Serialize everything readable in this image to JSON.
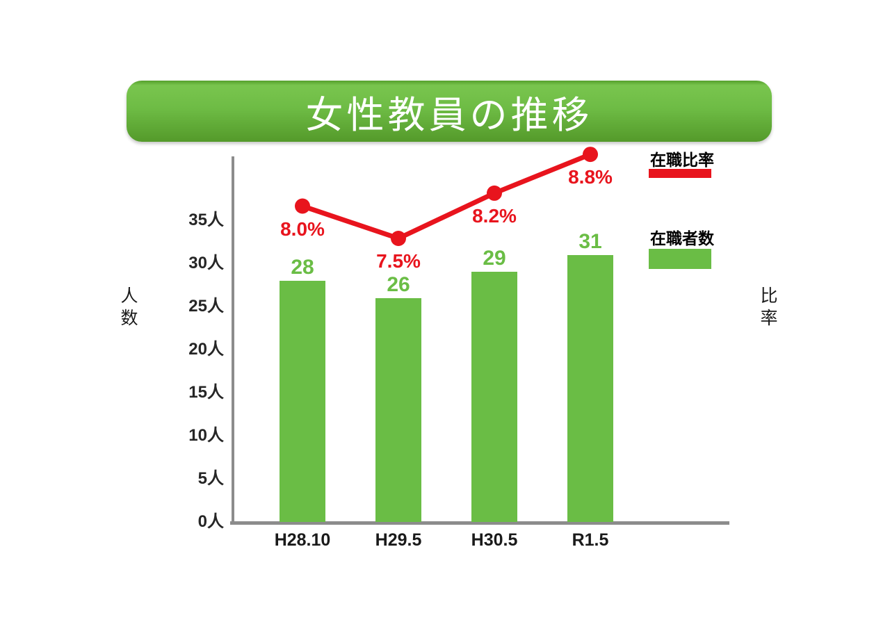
{
  "title": "女性教員の推移",
  "left_axis_title": "人数",
  "right_axis_title": "比率",
  "legend": {
    "line_label": "在職比率",
    "bar_label": "在職者数"
  },
  "colors": {
    "bar": "#6abd45",
    "line": "#e8141d",
    "axis": "#8c8c8c",
    "banner_top": "#79c54e",
    "banner_bottom": "#549a2a",
    "text": "#1a1a1a"
  },
  "chart_data": {
    "type": "bar+line combo",
    "title": "女性教員の推移",
    "categories": [
      "H28.10",
      "H29.5",
      "H30.5",
      "R1.5"
    ],
    "series": [
      {
        "name": "在職者数",
        "type": "bar",
        "unit": "人",
        "values": [
          28,
          26,
          29,
          31
        ],
        "labels": [
          "28",
          "26",
          "29",
          "31"
        ],
        "color": "#6abd45"
      },
      {
        "name": "在職比率",
        "type": "line",
        "unit": "%",
        "values": [
          8.0,
          7.5,
          8.2,
          8.8
        ],
        "labels": [
          "8.0%",
          "7.5%",
          "8.2%",
          "8.8%"
        ],
        "color": "#e8141d"
      }
    ],
    "left_axis": {
      "title": "人数",
      "ticks": [
        "0人",
        "5人",
        "10人",
        "15人",
        "20人",
        "25人",
        "30人",
        "35人"
      ],
      "tick_values": [
        0,
        5,
        10,
        15,
        20,
        25,
        30,
        35
      ],
      "ylim": [
        0,
        42.5
      ]
    },
    "right_axis": {
      "title": "比率",
      "tick_labels_visible": false
    },
    "legend_position": "right",
    "grid": false,
    "data_labels_visible": true
  }
}
